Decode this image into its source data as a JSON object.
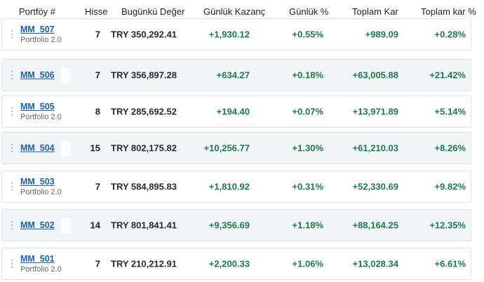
{
  "colors": {
    "positive": "#1c7a4a",
    "link": "#1a5fb4",
    "row_alt_background": "#f1f5f8",
    "border": "#e2e5e8"
  },
  "header": {
    "portfolio": "Portföy #",
    "hisse": "Hisse",
    "current_value": "Bugünkü Değer",
    "daily_gain": "Günlük Kazanç",
    "daily_pct": "Günlük %",
    "total_gain": "Toplam Kar",
    "total_pct": "Toplam kar %"
  },
  "rows": [
    {
      "name": "MM_507",
      "subtitle": "Portfolio 2.0",
      "shares": "7",
      "value": "TRY 350,292.41",
      "daily_gain": "+1,930.12",
      "daily_pct": "+0.55%",
      "total_gain": "+989.09",
      "total_pct": "+0.28%"
    },
    {
      "name": "MM_506",
      "subtitle": "",
      "shares": "7",
      "value": "TRY 356,897.28",
      "daily_gain": "+634.27",
      "daily_pct": "+0.18%",
      "total_gain": "+63,005.88",
      "total_pct": "+21.42%"
    },
    {
      "name": "MM_505",
      "subtitle": "Portfolio 2.0",
      "shares": "8",
      "value": "TRY 285,692.52",
      "daily_gain": "+194.40",
      "daily_pct": "+0.07%",
      "total_gain": "+13,971.89",
      "total_pct": "+5.14%"
    },
    {
      "name": "MM_504",
      "subtitle": "",
      "shares": "15",
      "value": "TRY 802,175.82",
      "daily_gain": "+10,256.77",
      "daily_pct": "+1.30%",
      "total_gain": "+61,210.03",
      "total_pct": "+8.26%"
    },
    {
      "name": "MM_503",
      "subtitle": "Portfolio 2.0",
      "shares": "7",
      "value": "TRY 584,895.83",
      "daily_gain": "+1,810.92",
      "daily_pct": "+0.31%",
      "total_gain": "+52,330.69",
      "total_pct": "+9.82%"
    },
    {
      "name": "MM_502",
      "subtitle": "",
      "shares": "14",
      "value": "TRY 801,841.41",
      "daily_gain": "+9,356.69",
      "daily_pct": "+1.18%",
      "total_gain": "+88,164.25",
      "total_pct": "+12.35%"
    },
    {
      "name": "MM_501",
      "subtitle": "Portfolio 2.0",
      "shares": "7",
      "value": "TRY 210,212.91",
      "daily_gain": "+2,200.33",
      "daily_pct": "+1.06%",
      "total_gain": "+13,028.34",
      "total_pct": "+6.61%"
    }
  ]
}
